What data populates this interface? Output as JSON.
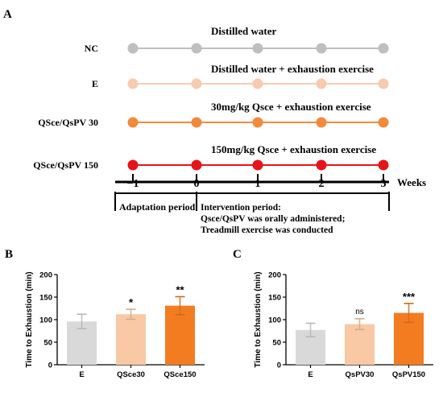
{
  "panel_labels": {
    "a": "A",
    "b": "B",
    "c": "C"
  },
  "timeline": {
    "groups": [
      {
        "label": "NC",
        "treatment": "Distilled water",
        "color": "#bfbfbf"
      },
      {
        "label": "E",
        "treatment": "Distilled water + exhaustion exercise",
        "color": "#f7cbb0"
      },
      {
        "label": "QSce/QsPV 30",
        "treatment": "30mg/kg Qsce + exhaustion exercise",
        "color": "#f28a3c"
      },
      {
        "label": "QSce/QsPV 150",
        "treatment": "150mg/kg Qsce + exhaustion exercise",
        "color": "#e8131a"
      }
    ],
    "axis_ticks": [
      "−1",
      "0",
      "1",
      "2",
      "3"
    ],
    "axis_unit": "Weeks",
    "adaptation_label": "Adaptation period",
    "intervention_lines": [
      "Intervention period:",
      "Qsce/QsPV was orally administered;",
      "Treadmill exercise was conducted"
    ]
  },
  "chart_data": [
    {
      "type": "bar",
      "panel": "B",
      "categories": [
        "E",
        "QSce30",
        "QSce150"
      ],
      "values": [
        96,
        112,
        131
      ],
      "errors": [
        16,
        11,
        20
      ],
      "significance": [
        "",
        "*",
        "**"
      ],
      "colors": [
        "#d9d9d9",
        "#f8c9a4",
        "#f47c20"
      ],
      "ylabel": "Time to Exhaustion (min)",
      "ylim": [
        0,
        200
      ],
      "yticks": [
        "0",
        "50",
        "100",
        "150",
        "200"
      ]
    },
    {
      "type": "bar",
      "panel": "C",
      "categories": [
        "E",
        "QsPV30",
        "QsPV150"
      ],
      "values": [
        77,
        90,
        115
      ],
      "errors": [
        15,
        12,
        21
      ],
      "significance": [
        "",
        "ns",
        "***"
      ],
      "colors": [
        "#d9d9d9",
        "#f8c9a4",
        "#f47c20"
      ],
      "ylabel": "Time to Exhaustion (min)",
      "ylim": [
        0,
        200
      ],
      "yticks": [
        "0",
        "50",
        "100",
        "150",
        "200"
      ]
    }
  ]
}
